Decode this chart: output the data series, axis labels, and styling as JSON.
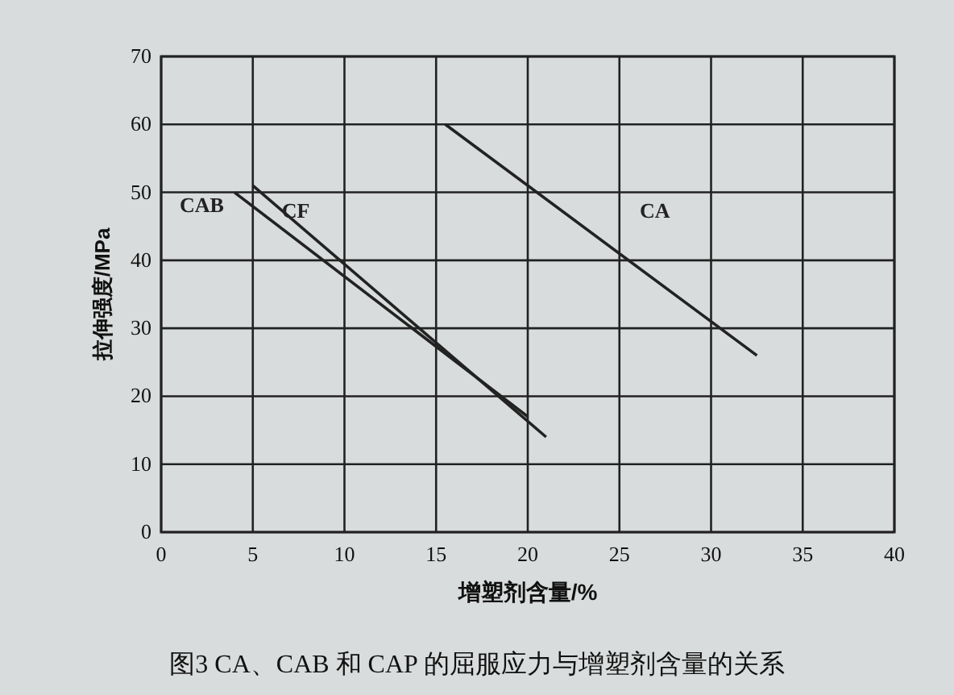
{
  "chart_data": {
    "type": "line",
    "title": "图3  CA、CAB 和 CAP 的屈服应力与增塑剂含量的关系",
    "xlabel": "增塑剂含量/%",
    "ylabel": "拉伸强度/MPa",
    "series": [
      {
        "name": "CAB",
        "color": "#222222",
        "x": [
          4,
          20
        ],
        "values": [
          50,
          17
        ]
      },
      {
        "name": "CF",
        "color": "#222222",
        "x": [
          5,
          21
        ],
        "values": [
          51,
          14
        ]
      },
      {
        "name": "CA",
        "color": "#222222",
        "x": [
          15.5,
          32.5
        ],
        "values": [
          60,
          26
        ]
      }
    ],
    "xlim": [
      0,
      40
    ],
    "ylim": [
      0,
      70
    ],
    "xticks": [
      0,
      5,
      10,
      15,
      20,
      25,
      30,
      35,
      40
    ],
    "yticks": [
      0,
      10,
      20,
      30,
      40,
      50,
      60,
      70
    ],
    "grid": true,
    "marker": "none",
    "line_style": "solid"
  }
}
